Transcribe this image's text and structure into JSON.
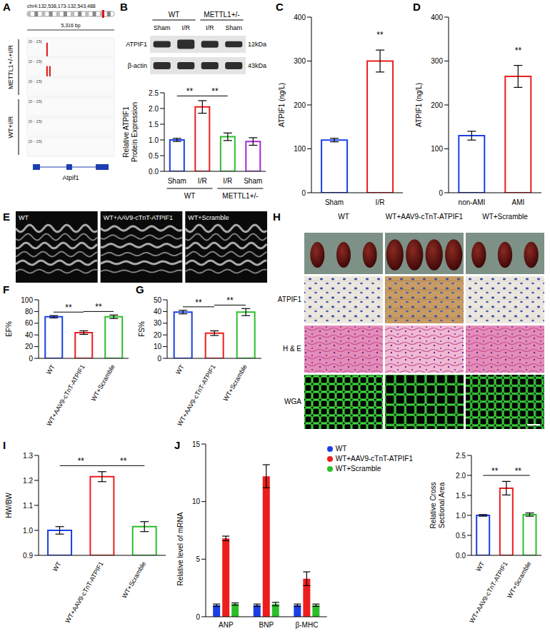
{
  "chart_data": [
    {
      "panel": "B",
      "type": "bar",
      "categories": [
        "Sham",
        "I/R",
        "I/R",
        "Sham"
      ],
      "groups": [
        {
          "label": "WT",
          "from": 0,
          "to": 1
        },
        {
          "label": "METTL1+/-",
          "from": 2,
          "to": 3
        }
      ],
      "values": [
        1.0,
        2.05,
        1.1,
        0.95
      ],
      "errors": [
        0.05,
        0.2,
        0.12,
        0.12
      ],
      "colors": [
        "#1a3fe6",
        "#ee1d1d",
        "#2bbf2b",
        "#a52ad8"
      ],
      "ylabel": "Relative ATPIF1 Protein Expression",
      "ylim": [
        0,
        2.5
      ],
      "yticks": [
        {
          "value": 0,
          "label": "0.0"
        },
        0.5,
        {
          "value": 1,
          "label": "1.0"
        },
        1.5,
        {
          "value": 2,
          "label": "2.0"
        },
        2.5
      ],
      "annotations": [
        {
          "from": 0,
          "to": 1,
          "text": "**"
        },
        {
          "from": 1,
          "to": 2,
          "text": "**"
        }
      ]
    },
    {
      "panel": "C",
      "type": "bar",
      "categories": [
        "Sham",
        "I/R"
      ],
      "values": [
        120,
        300
      ],
      "errors": [
        4,
        25
      ],
      "colors": [
        "#1a3fe6",
        "#ee1d1d"
      ],
      "ylabel": "ATPIF1 (ng/L)",
      "ylim": [
        0,
        400
      ],
      "yticks": [
        0,
        100,
        200,
        300,
        400
      ],
      "annotations": [
        {
          "from": 1,
          "to": 1,
          "text": "**",
          "color": "#000000"
        }
      ]
    },
    {
      "panel": "D",
      "type": "bar",
      "categories": [
        "non-AMI",
        "AMI"
      ],
      "values": [
        130,
        265
      ],
      "errors": [
        10,
        25
      ],
      "colors": [
        "#1a3fe6",
        "#ee1d1d"
      ],
      "ylabel": "ATPIF1 (ng/L)",
      "ylim": [
        0,
        400
      ],
      "yticks": [
        0,
        100,
        200,
        300,
        400
      ],
      "annotations": [
        {
          "from": 1,
          "to": 1,
          "text": "**",
          "color": "#000000"
        }
      ]
    },
    {
      "panel": "F",
      "type": "bar",
      "categories": [
        "WT",
        "WT+AAV9-cTnT-ATPIF1",
        "WT+Scramble"
      ],
      "values": [
        71,
        44,
        71
      ],
      "errors": [
        2,
        3,
        3
      ],
      "colors": [
        "#1a3fe6",
        "#ee1d1d",
        "#2bbf2b"
      ],
      "ylabel": "EF%",
      "ylim": [
        0,
        100
      ],
      "yticks": [
        0,
        20,
        40,
        60,
        80,
        100
      ],
      "annotations": [
        {
          "from": 0,
          "to": 1,
          "text": "**"
        },
        {
          "from": 1,
          "to": 2,
          "text": "**"
        }
      ]
    },
    {
      "panel": "G",
      "type": "bar",
      "categories": [
        "WT",
        "WT+AAV9-cTnT-ATPIF1",
        "WT+Scramble"
      ],
      "values": [
        39.5,
        21.5,
        39.5
      ],
      "errors": [
        1.5,
        2,
        3
      ],
      "colors": [
        "#1a3fe6",
        "#ee1d1d",
        "#2bbf2b"
      ],
      "ylabel": "FS%",
      "ylim": [
        0,
        50
      ],
      "yticks": [
        0,
        10,
        20,
        30,
        40,
        50
      ],
      "annotations": [
        {
          "from": 0,
          "to": 1,
          "text": "**"
        },
        {
          "from": 1,
          "to": 2,
          "text": "**"
        }
      ]
    },
    {
      "panel": "I",
      "type": "bar",
      "categories": [
        "WT",
        "WT+AAV9-cTnT-ATPIF1",
        "WT+Scramble"
      ],
      "values": [
        1.0,
        1.215,
        1.015
      ],
      "errors": [
        0.015,
        0.02,
        0.02
      ],
      "colors": [
        "#1a3fe6",
        "#ee1d1d",
        "#2bbf2b"
      ],
      "ylabel": "HW/BW",
      "ylim": [
        0.9,
        1.3
      ],
      "yticks": [
        0.9,
        {
          "value": 1,
          "label": "1.0"
        },
        1.1,
        1.2,
        1.3
      ],
      "annotations": [
        {
          "from": 0,
          "to": 1,
          "text": "**"
        },
        {
          "from": 1,
          "to": 2,
          "text": "**"
        }
      ]
    },
    {
      "panel": "J",
      "type": "bar",
      "categories": [
        "ANP",
        "BNP",
        "β-MHC"
      ],
      "series": [
        {
          "name": "WT",
          "color": "#1a3fe6",
          "values": [
            1,
            1,
            1
          ],
          "errors": [
            0.1,
            0.1,
            0.1
          ]
        },
        {
          "name": "WT+AAV9-cTnT-ATPIF1",
          "color": "#ee1d1d",
          "values": [
            6.8,
            12.2,
            3.3
          ],
          "errors": [
            0.2,
            1.0,
            0.6
          ]
        },
        {
          "name": "WT+Scramble",
          "color": "#2bbf2b",
          "values": [
            1.1,
            1.1,
            1.0
          ],
          "errors": [
            0.1,
            0.15,
            0.1
          ]
        }
      ],
      "ylabel": "Relative level of mRNA",
      "ylim": [
        0,
        15
      ],
      "yticks": [
        0,
        5,
        10,
        15
      ],
      "legend": "top-right"
    },
    {
      "type": "bar",
      "categories": [
        "WT",
        "WT+AAV9-cTnT-ATPIF1",
        "WT+Scramble"
      ],
      "values": [
        1.0,
        1.68,
        1.02
      ],
      "errors": [
        0.02,
        0.17,
        0.04
      ],
      "colors": [
        "#1a3fe6",
        "#ee1d1d",
        "#2bbf2b"
      ],
      "ylabel": "Relative Cross Sectional Area",
      "ylim": [
        0,
        2.5
      ],
      "yticks": [
        {
          "value": 0,
          "label": "0.0"
        },
        0.5,
        {
          "value": 1,
          "label": "1.0"
        },
        1.5,
        {
          "value": 2,
          "label": "2.0"
        },
        2.5
      ],
      "annotations": [
        {
          "from": 0,
          "to": 1,
          "text": "**"
        },
        {
          "from": 1,
          "to": 2,
          "text": "**"
        }
      ]
    }
  ],
  "figure": {
    "A": {
      "letter": "A",
      "locus": "chr4:132,538,173-132,543,488",
      "length": "5,316 bp",
      "ylim": [
        0,
        15
      ],
      "range_label": "[0 - 15]",
      "groups": [
        {
          "label": "METTL1+/-+I/R",
          "tracks": [
            [
              12
            ],
            [
              9,
              9
            ],
            []
          ]
        },
        {
          "label": "WT+I/R",
          "tracks": [
            [],
            [],
            []
          ]
        }
      ],
      "gene": "Atpif1"
    },
    "B": {
      "rows": [
        {
          "label": "ATPIF1",
          "size": "12kDa"
        },
        {
          "label": "β-actin",
          "size": "43kDa"
        }
      ]
    },
    "E": {
      "letter": "E",
      "images": [
        "WT",
        "WT+AAV9-cTnT-ATPIF1",
        "WT+Scramble"
      ]
    },
    "H": {
      "letter": "H",
      "columns": [
        "WT",
        "WT+AAV9-cTnT-ATPIF1",
        "WT+Scramble"
      ],
      "hearts": [
        3,
        4,
        3
      ],
      "rows": [
        "ATPIF1",
        "H & E",
        "WGA"
      ]
    }
  }
}
